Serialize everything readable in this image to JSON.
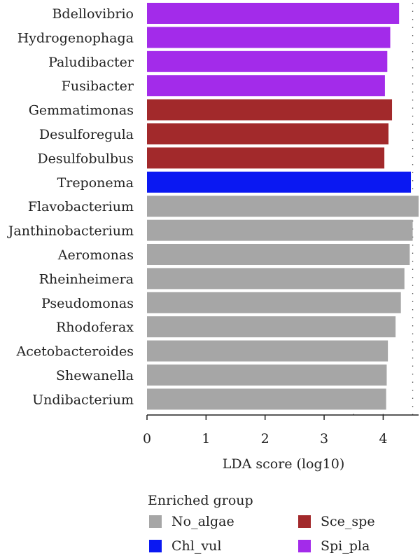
{
  "chart_data": {
    "type": "bar",
    "orientation": "horizontal",
    "xlabel": "LDA score (log10)",
    "xlim": [
      0,
      4.6
    ],
    "xticks": [
      0,
      1,
      2,
      3,
      4
    ],
    "grid": "dotted vertical",
    "categories": [
      "Bdellovibrio",
      "Hydrogenophaga",
      "Paludibacter",
      "Fusibacter",
      "Gemmatimonas",
      "Desulforegula",
      "Desulfobulbus",
      "Treponema",
      "Flavobacterium",
      "Janthinobacterium",
      "Aeromonas",
      "Rheinheimera",
      "Pseudomonas",
      "Rhodoferax",
      "Acetobacteroides",
      "Shewanella",
      "Undibacterium"
    ],
    "values": [
      4.27,
      4.12,
      4.07,
      4.03,
      4.15,
      4.09,
      4.02,
      4.47,
      4.6,
      4.5,
      4.45,
      4.36,
      4.3,
      4.21,
      4.08,
      4.06,
      4.05
    ],
    "groups": [
      "Spi_pla",
      "Spi_pla",
      "Spi_pla",
      "Spi_pla",
      "Sce_spe",
      "Sce_spe",
      "Sce_spe",
      "Chl_vul",
      "No_algae",
      "No_algae",
      "No_algae",
      "No_algae",
      "No_algae",
      "No_algae",
      "No_algae",
      "No_algae",
      "No_algae"
    ],
    "legend": {
      "title": "Enriched group",
      "placement": "bottom",
      "entries": [
        {
          "name": "No_algae",
          "color": "#A6A6A6"
        },
        {
          "name": "Sce_spe",
          "color": "#A2292B"
        },
        {
          "name": "Chl_vul",
          "color": "#0A18F2"
        },
        {
          "name": "Spi_pla",
          "color": "#A32BEA"
        }
      ]
    }
  }
}
